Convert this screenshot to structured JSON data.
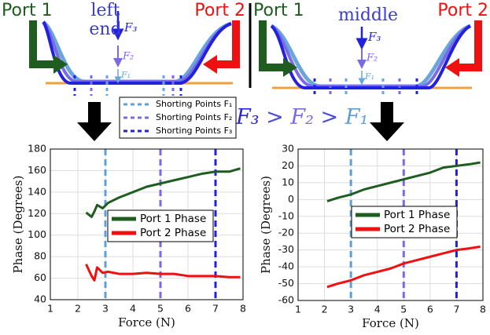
{
  "diagram": {
    "panels": [
      {
        "port1": "Port 1",
        "port2": "Port 2",
        "position": [
          "left",
          "end"
        ],
        "forces": [
          "F₃",
          "F₂",
          "F₁"
        ]
      },
      {
        "port1": "Port 1",
        "port2": "Port 2",
        "position": [
          "middle"
        ],
        "forces": [
          "F₃",
          "F₂",
          "F₁"
        ]
      }
    ],
    "inequality": [
      {
        "text": "F₃",
        "color": "#2b2bd6"
      },
      {
        "text": " > ",
        "color": "#4b4bd6"
      },
      {
        "text": "F₂",
        "color": "#7a6ae6"
      },
      {
        "text": " > ",
        "color": "#4b4bd6"
      },
      {
        "text": "F₁",
        "color": "#5f9fd6"
      }
    ],
    "shorting_points": [
      {
        "name": "Shorting Points F₁",
        "color": "#5f9fd6"
      },
      {
        "name": "Shorting Points F₂",
        "color": "#7a6ae6"
      },
      {
        "name": "Shorting Points F₃",
        "color": "#2222dd"
      }
    ]
  },
  "chart_data": [
    {
      "type": "line",
      "xlabel": "Force (N)",
      "ylabel": "Phase (Degrees)",
      "x": [
        2.3,
        2.5,
        2.6,
        2.7,
        2.9,
        3.1,
        3.5,
        4,
        4.5,
        5,
        5.5,
        6,
        6.5,
        7,
        7.5,
        7.9
      ],
      "series": [
        {
          "name": "Port 1 Phase",
          "color": "#1f5c1f",
          "values": [
            121,
            117,
            122,
            128,
            125,
            130,
            135,
            140,
            145,
            148,
            151,
            154,
            157,
            159,
            159,
            162
          ]
        },
        {
          "name": "Port 2 Phase",
          "color": "#ee1111",
          "values": [
            73,
            62,
            58,
            70,
            65,
            66,
            64,
            64,
            65,
            64,
            64,
            62,
            62,
            62,
            61,
            61
          ]
        }
      ],
      "vlines": [
        3,
        5,
        7
      ],
      "xlim": [
        1,
        8
      ],
      "xticks": [
        1,
        2,
        3,
        4,
        5,
        6,
        7,
        8
      ],
      "ylim": [
        40,
        180
      ],
      "yticks": [
        40,
        60,
        80,
        100,
        120,
        140,
        160,
        180
      ],
      "grid": true
    },
    {
      "type": "line",
      "xlabel": "Force (N)",
      "ylabel": "Phase (Degrees)",
      "x": [
        2.1,
        2.5,
        3,
        3.5,
        4,
        4.5,
        5,
        5.5,
        6,
        6.5,
        7,
        7.5,
        7.9
      ],
      "series": [
        {
          "name": "Port 1 Phase",
          "color": "#1f5c1f",
          "values": [
            -1,
            1,
            3,
            6,
            8,
            10,
            12,
            14,
            16,
            19,
            20,
            21,
            22
          ]
        },
        {
          "name": "Port 2 Phase",
          "color": "#ee1111",
          "values": [
            -52,
            -50,
            -48,
            -45,
            -43,
            -41,
            -38,
            -36,
            -34,
            -32,
            -30,
            -29,
            -28
          ]
        }
      ],
      "vlines": [
        3,
        5,
        7
      ],
      "xlim": [
        1,
        8
      ],
      "xticks": [
        1,
        2,
        3,
        4,
        5,
        6,
        7,
        8
      ],
      "ylim": [
        -60,
        30
      ],
      "yticks": [
        -60,
        -50,
        -40,
        -30,
        -20,
        -10,
        0,
        10,
        20,
        30
      ],
      "grid": true
    }
  ]
}
